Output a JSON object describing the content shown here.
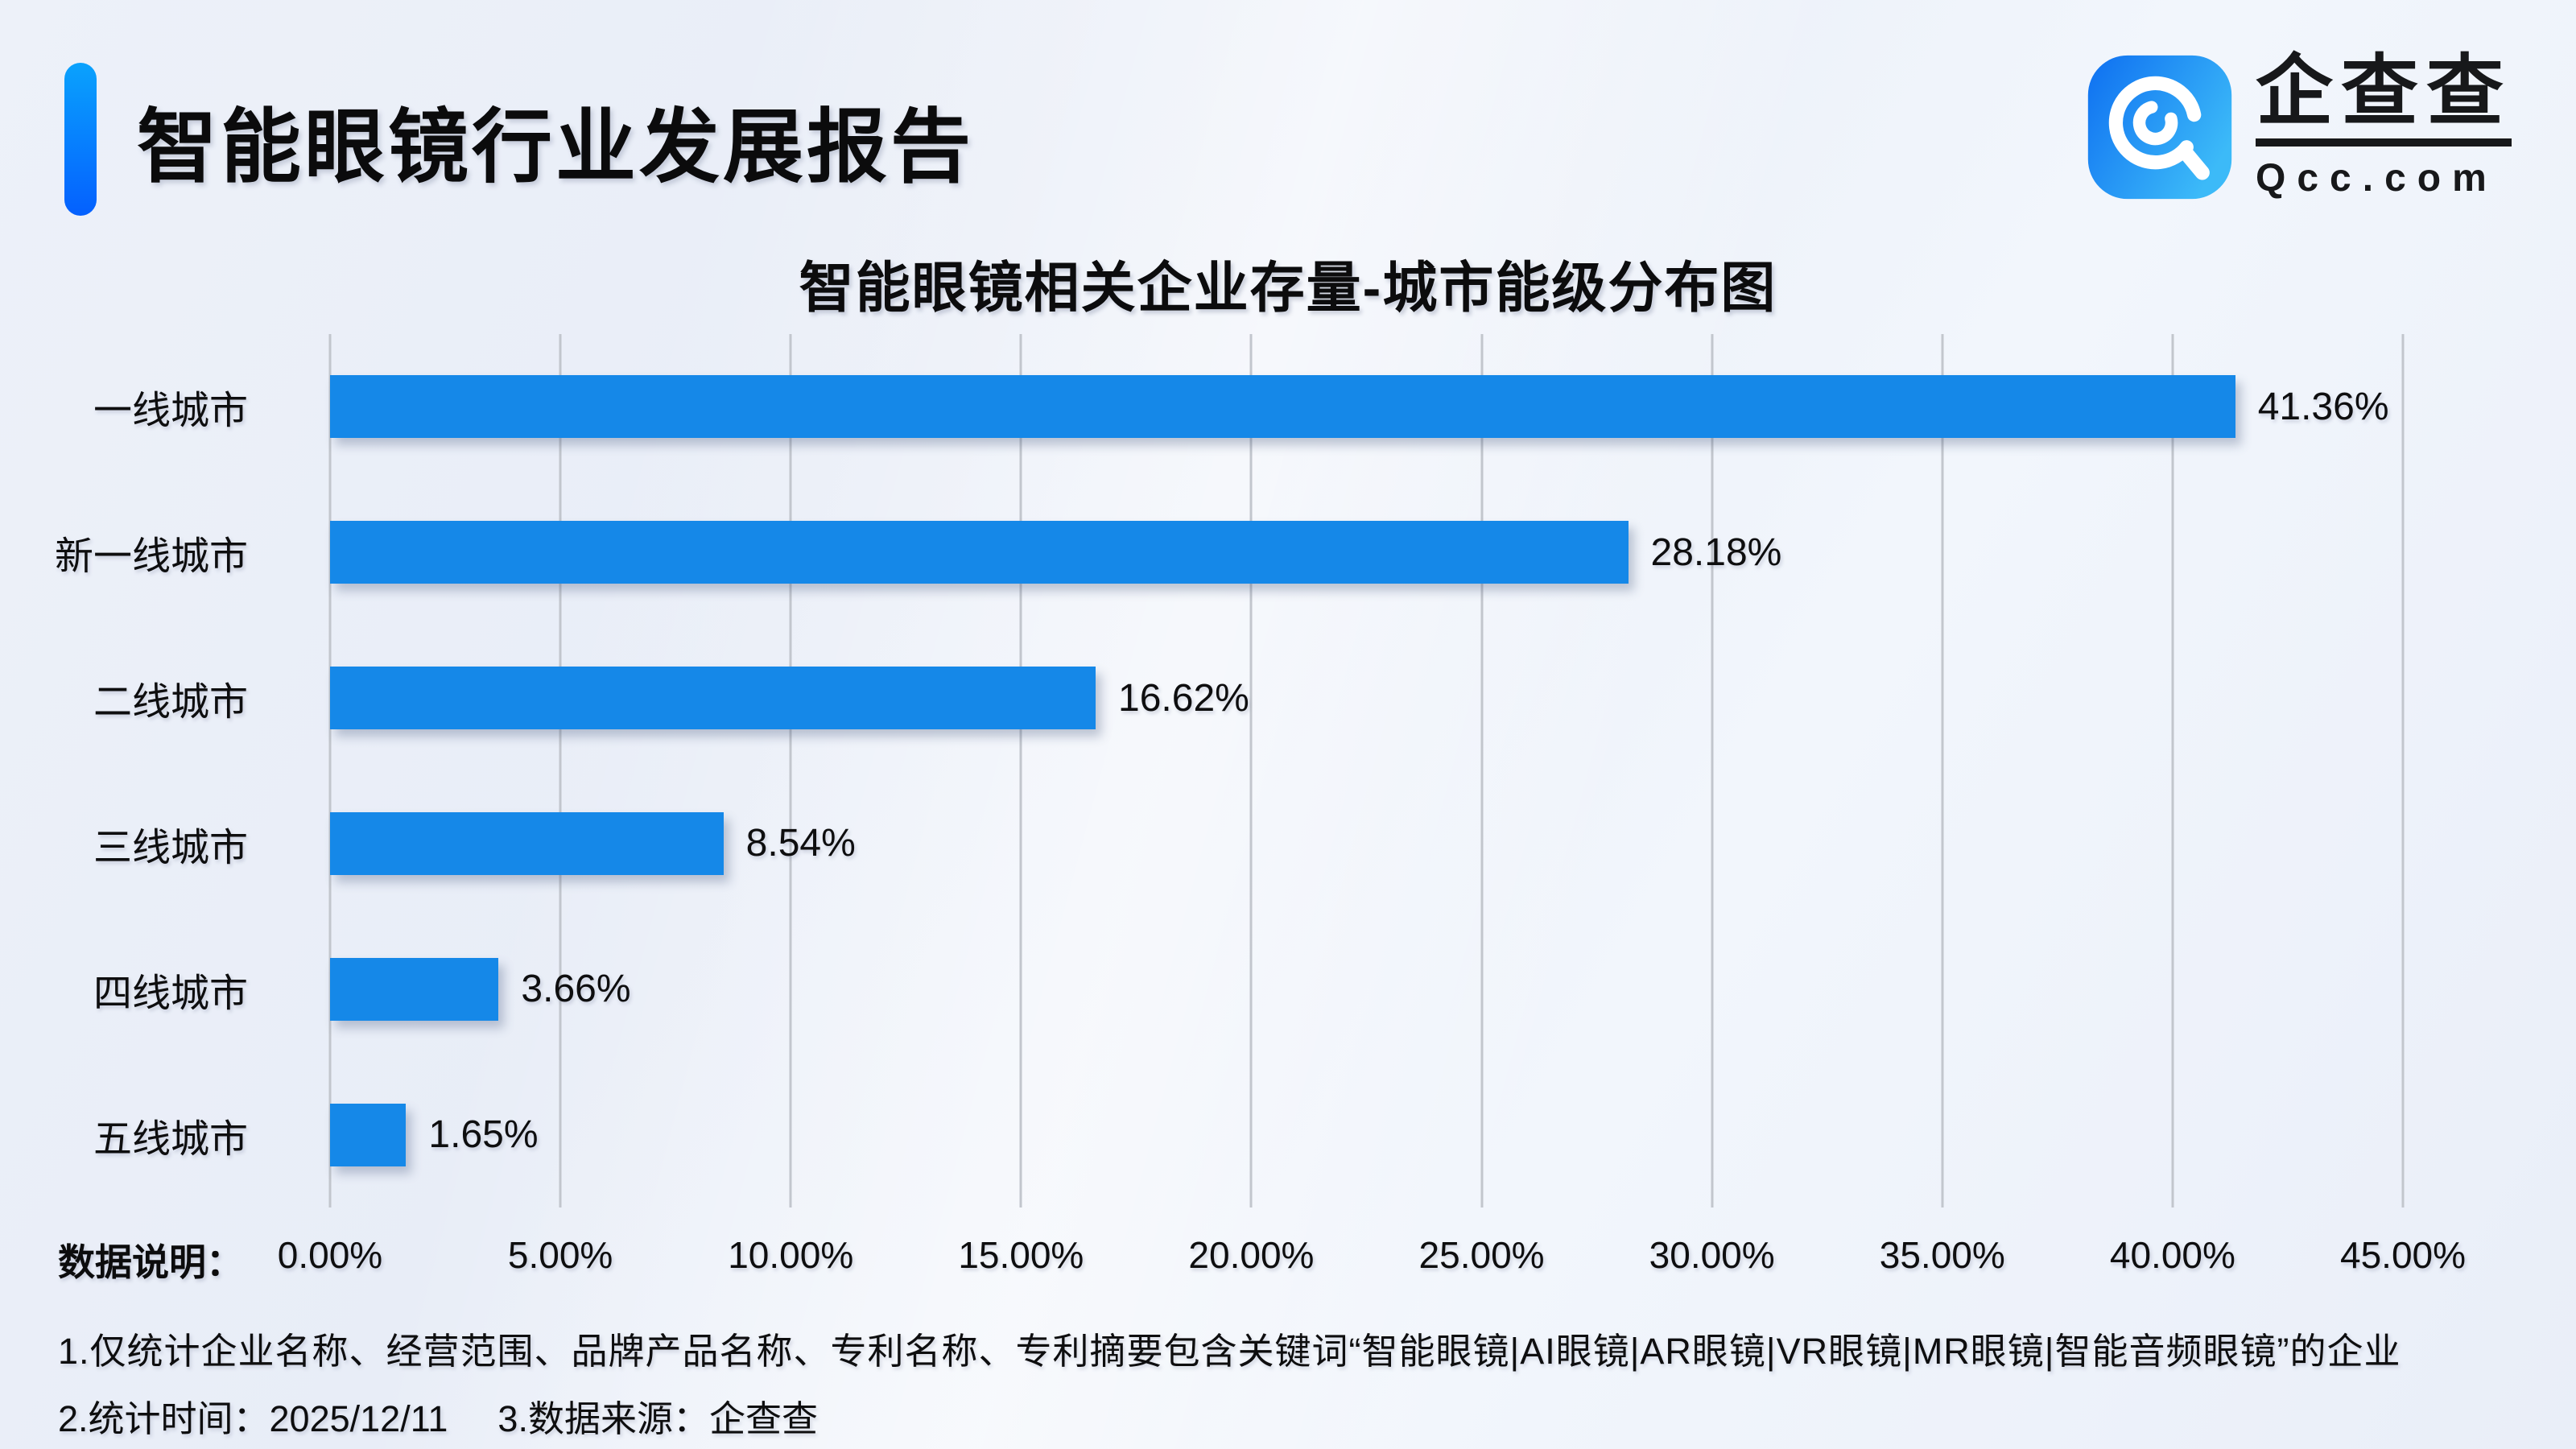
{
  "header": {
    "title": "智能眼镜行业发展报告",
    "logo": {
      "brand": "企查查",
      "domain": "Qcc.com"
    }
  },
  "chart_data": {
    "type": "bar",
    "orientation": "horizontal",
    "title": "智能眼镜相关企业存量-城市能级分布图",
    "categories": [
      "一线城市",
      "新一线城市",
      "二线城市",
      "三线城市",
      "四线城市",
      "五线城市"
    ],
    "values": [
      41.36,
      28.18,
      16.62,
      8.54,
      3.66,
      1.65
    ],
    "value_labels": [
      "41.36%",
      "28.18%",
      "16.62%",
      "8.54%",
      "3.66%",
      "1.65%"
    ],
    "x_ticks": [
      "0.00%",
      "5.00%",
      "10.00%",
      "15.00%",
      "20.00%",
      "25.00%",
      "30.00%",
      "35.00%",
      "40.00%",
      "45.00%"
    ],
    "xlim": [
      0,
      45
    ],
    "grid": true,
    "legend": "none",
    "bar_color": "#1588e8"
  },
  "footnotes": {
    "label": "数据说明：",
    "line1": "1.仅统计企业名称、经营范围、品牌产品名称、专利名称、专利摘要包含关键词“智能眼镜|AI眼镜|AR眼镜|VR眼镜|MR眼镜|智能音频眼镜”的企业",
    "line2_time": "2.统计时间：2025/12/11",
    "line2_source": "3.数据来源：企查查"
  },
  "colors": {
    "bar": "#1588e8",
    "grid": "#c2c6cd",
    "accent_top": "#0aa2fd",
    "accent_bottom": "#0460fe",
    "logo_gradient_start": "#0e6ff1",
    "logo_gradient_end": "#3cbaf8"
  }
}
